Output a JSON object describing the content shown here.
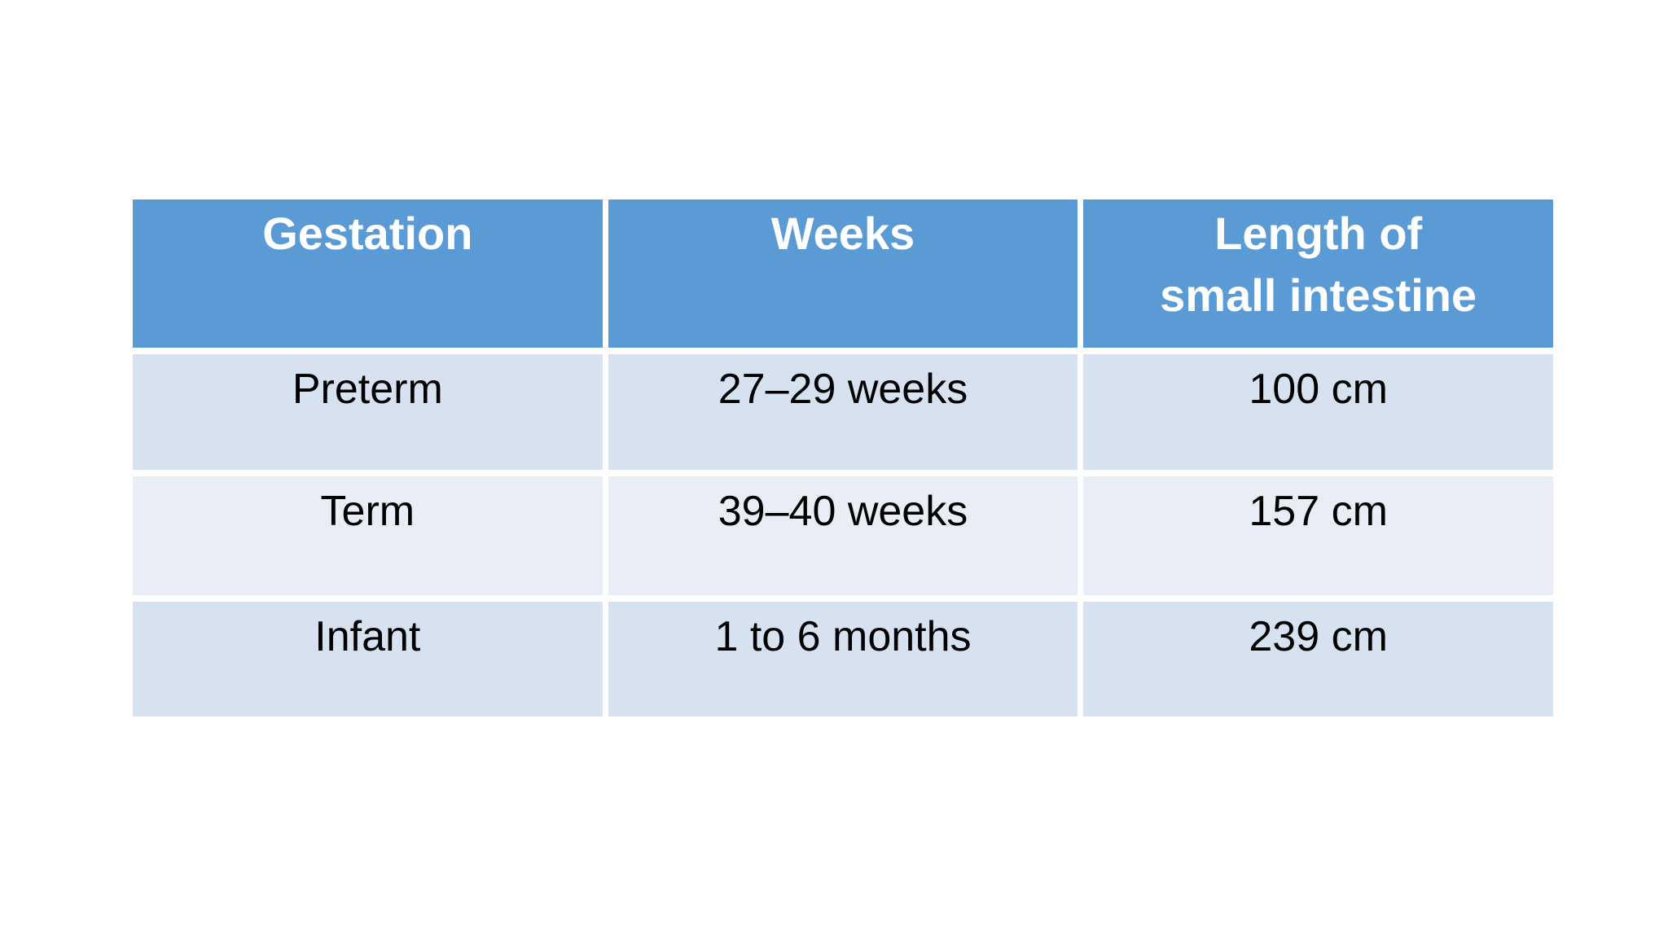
{
  "theme": {
    "page-bg": "#ffffff",
    "header-bg": "#5b9bd5",
    "header-text": "#ffffff",
    "row-band-a": "#d6e2f0",
    "row-band-b": "#e9eef6",
    "body-text": "#000000",
    "separator": "#ffffff"
  },
  "table": {
    "headers": [
      "Gestation",
      "Weeks",
      "Length of\nsmall intestine"
    ],
    "rows": [
      [
        "Preterm",
        "27–29 weeks",
        "100 cm"
      ],
      [
        "Term",
        "39–40 weeks",
        "157 cm"
      ],
      [
        "Infant",
        "1 to 6 months",
        "239 cm"
      ]
    ]
  },
  "chart_data": {
    "type": "table",
    "title": "",
    "columns": [
      "Gestation",
      "Weeks",
      "Length of small intestine"
    ],
    "rows": [
      [
        "Preterm",
        "27–29 weeks",
        "100 cm"
      ],
      [
        "Term",
        "39–40 weeks",
        "157 cm"
      ],
      [
        "Infant",
        "1 to 6 months",
        "239 cm"
      ]
    ],
    "length_of_small_intestine_cm": [
      100,
      157,
      239
    ]
  }
}
